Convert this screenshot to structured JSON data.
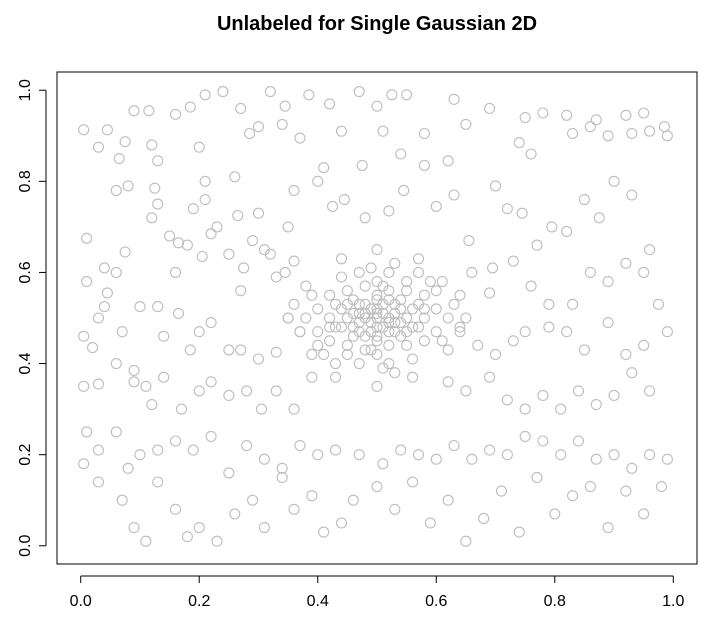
{
  "chart_data": {
    "type": "scatter",
    "title": "Unlabeled for Single Gaussian 2D",
    "xlabel": "",
    "ylabel": "",
    "xlim": [
      -0.04,
      1.04
    ],
    "ylim": [
      -0.04,
      1.04
    ],
    "x_ticks": [
      0.0,
      0.2,
      0.4,
      0.6,
      0.8,
      1.0
    ],
    "y_ticks": [
      0.0,
      0.2,
      0.4,
      0.6,
      0.8,
      1.0
    ],
    "x_tick_labels": [
      "0.0",
      "0.2",
      "0.4",
      "0.6",
      "0.8",
      "1.0"
    ],
    "y_tick_labels": [
      "0.0",
      "0.2",
      "0.4",
      "0.6",
      "0.8",
      "1.0"
    ],
    "grid": false,
    "marker": "open-circle",
    "point_color": "#bdbdbd",
    "uniform_points": [
      [
        0.005,
        0.913
      ],
      [
        0.045,
        0.913
      ],
      [
        0.075,
        0.887
      ],
      [
        0.09,
        0.955
      ],
      [
        0.115,
        0.955
      ],
      [
        0.16,
        0.947
      ],
      [
        0.185,
        0.963
      ],
      [
        0.21,
        0.99
      ],
      [
        0.24,
        0.997
      ],
      [
        0.27,
        0.96
      ],
      [
        0.3,
        0.92
      ],
      [
        0.32,
        0.997
      ],
      [
        0.345,
        0.965
      ],
      [
        0.385,
        0.99
      ],
      [
        0.42,
        0.97
      ],
      [
        0.47,
        0.997
      ],
      [
        0.5,
        0.965
      ],
      [
        0.525,
        0.99
      ],
      [
        0.55,
        0.99
      ],
      [
        0.63,
        0.98
      ],
      [
        0.69,
        0.96
      ],
      [
        0.75,
        0.94
      ],
      [
        0.78,
        0.95
      ],
      [
        0.82,
        0.945
      ],
      [
        0.87,
        0.935
      ],
      [
        0.92,
        0.945
      ],
      [
        0.95,
        0.95
      ],
      [
        0.985,
        0.92
      ],
      [
        0.03,
        0.875
      ],
      [
        0.065,
        0.85
      ],
      [
        0.12,
        0.88
      ],
      [
        0.13,
        0.845
      ],
      [
        0.2,
        0.875
      ],
      [
        0.21,
        0.8
      ],
      [
        0.26,
        0.81
      ],
      [
        0.285,
        0.905
      ],
      [
        0.34,
        0.925
      ],
      [
        0.37,
        0.895
      ],
      [
        0.41,
        0.83
      ],
      [
        0.44,
        0.91
      ],
      [
        0.475,
        0.835
      ],
      [
        0.51,
        0.91
      ],
      [
        0.54,
        0.86
      ],
      [
        0.58,
        0.905
      ],
      [
        0.62,
        0.845
      ],
      [
        0.65,
        0.925
      ],
      [
        0.7,
        0.79
      ],
      [
        0.74,
        0.885
      ],
      [
        0.76,
        0.86
      ],
      [
        0.83,
        0.905
      ],
      [
        0.86,
        0.92
      ],
      [
        0.89,
        0.9
      ],
      [
        0.93,
        0.905
      ],
      [
        0.96,
        0.91
      ],
      [
        0.99,
        0.9
      ],
      [
        0.01,
        0.675
      ],
      [
        0.04,
        0.61
      ],
      [
        0.06,
        0.78
      ],
      [
        0.08,
        0.79
      ],
      [
        0.12,
        0.72
      ],
      [
        0.125,
        0.785
      ],
      [
        0.13,
        0.75
      ],
      [
        0.15,
        0.68
      ],
      [
        0.165,
        0.665
      ],
      [
        0.19,
        0.74
      ],
      [
        0.21,
        0.76
      ],
      [
        0.23,
        0.7
      ],
      [
        0.265,
        0.725
      ],
      [
        0.275,
        0.61
      ],
      [
        0.3,
        0.73
      ],
      [
        0.32,
        0.64
      ],
      [
        0.35,
        0.7
      ],
      [
        0.36,
        0.78
      ],
      [
        0.4,
        0.8
      ],
      [
        0.425,
        0.745
      ],
      [
        0.445,
        0.76
      ],
      [
        0.48,
        0.72
      ],
      [
        0.52,
        0.735
      ],
      [
        0.545,
        0.78
      ],
      [
        0.58,
        0.835
      ],
      [
        0.6,
        0.745
      ],
      [
        0.63,
        0.77
      ],
      [
        0.655,
        0.67
      ],
      [
        0.695,
        0.61
      ],
      [
        0.72,
        0.74
      ],
      [
        0.745,
        0.73
      ],
      [
        0.77,
        0.66
      ],
      [
        0.795,
        0.7
      ],
      [
        0.82,
        0.69
      ],
      [
        0.85,
        0.76
      ],
      [
        0.875,
        0.72
      ],
      [
        0.9,
        0.8
      ],
      [
        0.93,
        0.77
      ],
      [
        0.96,
        0.65
      ],
      [
        0.01,
        0.58
      ],
      [
        0.03,
        0.5
      ],
      [
        0.045,
        0.555
      ],
      [
        0.06,
        0.6
      ],
      [
        0.075,
        0.645
      ],
      [
        0.1,
        0.525
      ],
      [
        0.13,
        0.525
      ],
      [
        0.16,
        0.6
      ],
      [
        0.18,
        0.66
      ],
      [
        0.205,
        0.635
      ],
      [
        0.22,
        0.685
      ],
      [
        0.25,
        0.64
      ],
      [
        0.27,
        0.56
      ],
      [
        0.29,
        0.67
      ],
      [
        0.31,
        0.65
      ],
      [
        0.33,
        0.59
      ],
      [
        0.345,
        0.6
      ],
      [
        0.36,
        0.625
      ],
      [
        0.64,
        0.55
      ],
      [
        0.66,
        0.6
      ],
      [
        0.69,
        0.555
      ],
      [
        0.73,
        0.625
      ],
      [
        0.76,
        0.57
      ],
      [
        0.79,
        0.53
      ],
      [
        0.83,
        0.53
      ],
      [
        0.86,
        0.6
      ],
      [
        0.89,
        0.58
      ],
      [
        0.92,
        0.62
      ],
      [
        0.95,
        0.6
      ],
      [
        0.975,
        0.53
      ],
      [
        0.005,
        0.46
      ],
      [
        0.02,
        0.435
      ],
      [
        0.04,
        0.525
      ],
      [
        0.07,
        0.47
      ],
      [
        0.09,
        0.385
      ],
      [
        0.11,
        0.35
      ],
      [
        0.14,
        0.46
      ],
      [
        0.165,
        0.51
      ],
      [
        0.185,
        0.43
      ],
      [
        0.2,
        0.47
      ],
      [
        0.22,
        0.49
      ],
      [
        0.25,
        0.43
      ],
      [
        0.27,
        0.43
      ],
      [
        0.3,
        0.41
      ],
      [
        0.33,
        0.425
      ],
      [
        0.35,
        0.5
      ],
      [
        0.37,
        0.47
      ],
      [
        0.64,
        0.48
      ],
      [
        0.67,
        0.44
      ],
      [
        0.7,
        0.42
      ],
      [
        0.73,
        0.45
      ],
      [
        0.75,
        0.47
      ],
      [
        0.79,
        0.48
      ],
      [
        0.82,
        0.47
      ],
      [
        0.85,
        0.43
      ],
      [
        0.89,
        0.49
      ],
      [
        0.92,
        0.42
      ],
      [
        0.95,
        0.44
      ],
      [
        0.99,
        0.47
      ],
      [
        0.005,
        0.35
      ],
      [
        0.03,
        0.355
      ],
      [
        0.06,
        0.4
      ],
      [
        0.09,
        0.36
      ],
      [
        0.12,
        0.31
      ],
      [
        0.14,
        0.37
      ],
      [
        0.17,
        0.3
      ],
      [
        0.2,
        0.34
      ],
      [
        0.22,
        0.36
      ],
      [
        0.25,
        0.33
      ],
      [
        0.28,
        0.34
      ],
      [
        0.305,
        0.3
      ],
      [
        0.33,
        0.34
      ],
      [
        0.36,
        0.3
      ],
      [
        0.39,
        0.37
      ],
      [
        0.62,
        0.36
      ],
      [
        0.65,
        0.34
      ],
      [
        0.69,
        0.37
      ],
      [
        0.72,
        0.32
      ],
      [
        0.75,
        0.3
      ],
      [
        0.78,
        0.33
      ],
      [
        0.81,
        0.3
      ],
      [
        0.84,
        0.34
      ],
      [
        0.87,
        0.31
      ],
      [
        0.9,
        0.33
      ],
      [
        0.93,
        0.38
      ],
      [
        0.96,
        0.34
      ],
      [
        0.01,
        0.25
      ],
      [
        0.03,
        0.21
      ],
      [
        0.06,
        0.25
      ],
      [
        0.08,
        0.17
      ],
      [
        0.1,
        0.2
      ],
      [
        0.13,
        0.21
      ],
      [
        0.16,
        0.23
      ],
      [
        0.19,
        0.21
      ],
      [
        0.22,
        0.24
      ],
      [
        0.25,
        0.16
      ],
      [
        0.28,
        0.22
      ],
      [
        0.31,
        0.19
      ],
      [
        0.34,
        0.17
      ],
      [
        0.37,
        0.22
      ],
      [
        0.4,
        0.2
      ],
      [
        0.43,
        0.21
      ],
      [
        0.47,
        0.2
      ],
      [
        0.51,
        0.18
      ],
      [
        0.54,
        0.21
      ],
      [
        0.57,
        0.2
      ],
      [
        0.6,
        0.19
      ],
      [
        0.63,
        0.22
      ],
      [
        0.66,
        0.19
      ],
      [
        0.69,
        0.21
      ],
      [
        0.72,
        0.2
      ],
      [
        0.75,
        0.24
      ],
      [
        0.78,
        0.23
      ],
      [
        0.81,
        0.2
      ],
      [
        0.84,
        0.23
      ],
      [
        0.87,
        0.19
      ],
      [
        0.9,
        0.2
      ],
      [
        0.93,
        0.17
      ],
      [
        0.96,
        0.2
      ],
      [
        0.99,
        0.19
      ],
      [
        0.005,
        0.18
      ],
      [
        0.03,
        0.14
      ],
      [
        0.07,
        0.1
      ],
      [
        0.09,
        0.04
      ],
      [
        0.11,
        0.01
      ],
      [
        0.13,
        0.14
      ],
      [
        0.16,
        0.08
      ],
      [
        0.18,
        0.02
      ],
      [
        0.2,
        0.04
      ],
      [
        0.23,
        0.01
      ],
      [
        0.26,
        0.07
      ],
      [
        0.29,
        0.1
      ],
      [
        0.31,
        0.04
      ],
      [
        0.34,
        0.15
      ],
      [
        0.36,
        0.08
      ],
      [
        0.39,
        0.11
      ],
      [
        0.41,
        0.03
      ],
      [
        0.44,
        0.05
      ],
      [
        0.46,
        0.1
      ],
      [
        0.5,
        0.13
      ],
      [
        0.53,
        0.08
      ],
      [
        0.56,
        0.14
      ],
      [
        0.59,
        0.05
      ],
      [
        0.62,
        0.1
      ],
      [
        0.65,
        0.01
      ],
      [
        0.68,
        0.06
      ],
      [
        0.71,
        0.12
      ],
      [
        0.74,
        0.03
      ],
      [
        0.77,
        0.15
      ],
      [
        0.8,
        0.07
      ],
      [
        0.83,
        0.11
      ],
      [
        0.86,
        0.13
      ],
      [
        0.89,
        0.04
      ],
      [
        0.92,
        0.12
      ],
      [
        0.95,
        0.07
      ],
      [
        0.98,
        0.13
      ]
    ],
    "cluster_points": [
      [
        0.5,
        0.5
      ],
      [
        0.52,
        0.49
      ],
      [
        0.48,
        0.51
      ],
      [
        0.51,
        0.53
      ],
      [
        0.49,
        0.47
      ],
      [
        0.53,
        0.51
      ],
      [
        0.47,
        0.49
      ],
      [
        0.5,
        0.52
      ],
      [
        0.55,
        0.5
      ],
      [
        0.45,
        0.5
      ],
      [
        0.5,
        0.45
      ],
      [
        0.5,
        0.55
      ],
      [
        0.54,
        0.54
      ],
      [
        0.46,
        0.46
      ],
      [
        0.54,
        0.46
      ],
      [
        0.46,
        0.54
      ],
      [
        0.56,
        0.52
      ],
      [
        0.44,
        0.52
      ],
      [
        0.52,
        0.44
      ],
      [
        0.52,
        0.56
      ],
      [
        0.48,
        0.57
      ],
      [
        0.57,
        0.48
      ],
      [
        0.43,
        0.48
      ],
      [
        0.48,
        0.43
      ],
      [
        0.58,
        0.5
      ],
      [
        0.42,
        0.5
      ],
      [
        0.5,
        0.42
      ],
      [
        0.5,
        0.58
      ],
      [
        0.6,
        0.52
      ],
      [
        0.4,
        0.52
      ],
      [
        0.52,
        0.6
      ],
      [
        0.52,
        0.4
      ],
      [
        0.55,
        0.56
      ],
      [
        0.45,
        0.44
      ],
      [
        0.55,
        0.44
      ],
      [
        0.45,
        0.56
      ],
      [
        0.58,
        0.55
      ],
      [
        0.42,
        0.45
      ],
      [
        0.58,
        0.45
      ],
      [
        0.42,
        0.55
      ],
      [
        0.6,
        0.47
      ],
      [
        0.4,
        0.47
      ],
      [
        0.47,
        0.6
      ],
      [
        0.47,
        0.4
      ],
      [
        0.53,
        0.38
      ],
      [
        0.53,
        0.62
      ],
      [
        0.62,
        0.5
      ],
      [
        0.38,
        0.5
      ],
      [
        0.51,
        0.48
      ],
      [
        0.49,
        0.52
      ],
      [
        0.53,
        0.47
      ],
      [
        0.47,
        0.53
      ],
      [
        0.51,
        0.51
      ],
      [
        0.49,
        0.49
      ],
      [
        0.54,
        0.49
      ],
      [
        0.46,
        0.51
      ],
      [
        0.52,
        0.5
      ],
      [
        0.48,
        0.5
      ],
      [
        0.5,
        0.48
      ],
      [
        0.5,
        0.51
      ],
      [
        0.53,
        0.53
      ],
      [
        0.47,
        0.47
      ],
      [
        0.56,
        0.48
      ],
      [
        0.44,
        0.48
      ],
      [
        0.57,
        0.53
      ],
      [
        0.43,
        0.53
      ],
      [
        0.55,
        0.58
      ],
      [
        0.45,
        0.42
      ],
      [
        0.59,
        0.58
      ],
      [
        0.41,
        0.42
      ],
      [
        0.61,
        0.45
      ],
      [
        0.39,
        0.55
      ],
      [
        0.57,
        0.6
      ],
      [
        0.43,
        0.4
      ],
      [
        0.6,
        0.56
      ],
      [
        0.4,
        0.44
      ],
      [
        0.63,
        0.53
      ],
      [
        0.37,
        0.47
      ],
      [
        0.56,
        0.41
      ],
      [
        0.44,
        0.59
      ],
      [
        0.51,
        0.57
      ],
      [
        0.49,
        0.43
      ],
      [
        0.58,
        0.52
      ],
      [
        0.42,
        0.48
      ],
      [
        0.54,
        0.52
      ],
      [
        0.46,
        0.48
      ],
      [
        0.52,
        0.54
      ],
      [
        0.48,
        0.46
      ],
      [
        0.5,
        0.54
      ],
      [
        0.5,
        0.46
      ],
      [
        0.53,
        0.49
      ],
      [
        0.47,
        0.51
      ],
      [
        0.55,
        0.47
      ],
      [
        0.45,
        0.53
      ],
      [
        0.52,
        0.47
      ],
      [
        0.48,
        0.53
      ],
      [
        0.64,
        0.47
      ],
      [
        0.36,
        0.53
      ],
      [
        0.61,
        0.58
      ],
      [
        0.39,
        0.42
      ],
      [
        0.57,
        0.63
      ],
      [
        0.43,
        0.37
      ],
      [
        0.49,
        0.61
      ],
      [
        0.51,
        0.39
      ],
      [
        0.65,
        0.5
      ],
      [
        0.35,
        0.5
      ],
      [
        0.5,
        0.35
      ],
      [
        0.5,
        0.65
      ],
      [
        0.62,
        0.43
      ],
      [
        0.38,
        0.57
      ],
      [
        0.44,
        0.63
      ],
      [
        0.56,
        0.37
      ]
    ]
  }
}
